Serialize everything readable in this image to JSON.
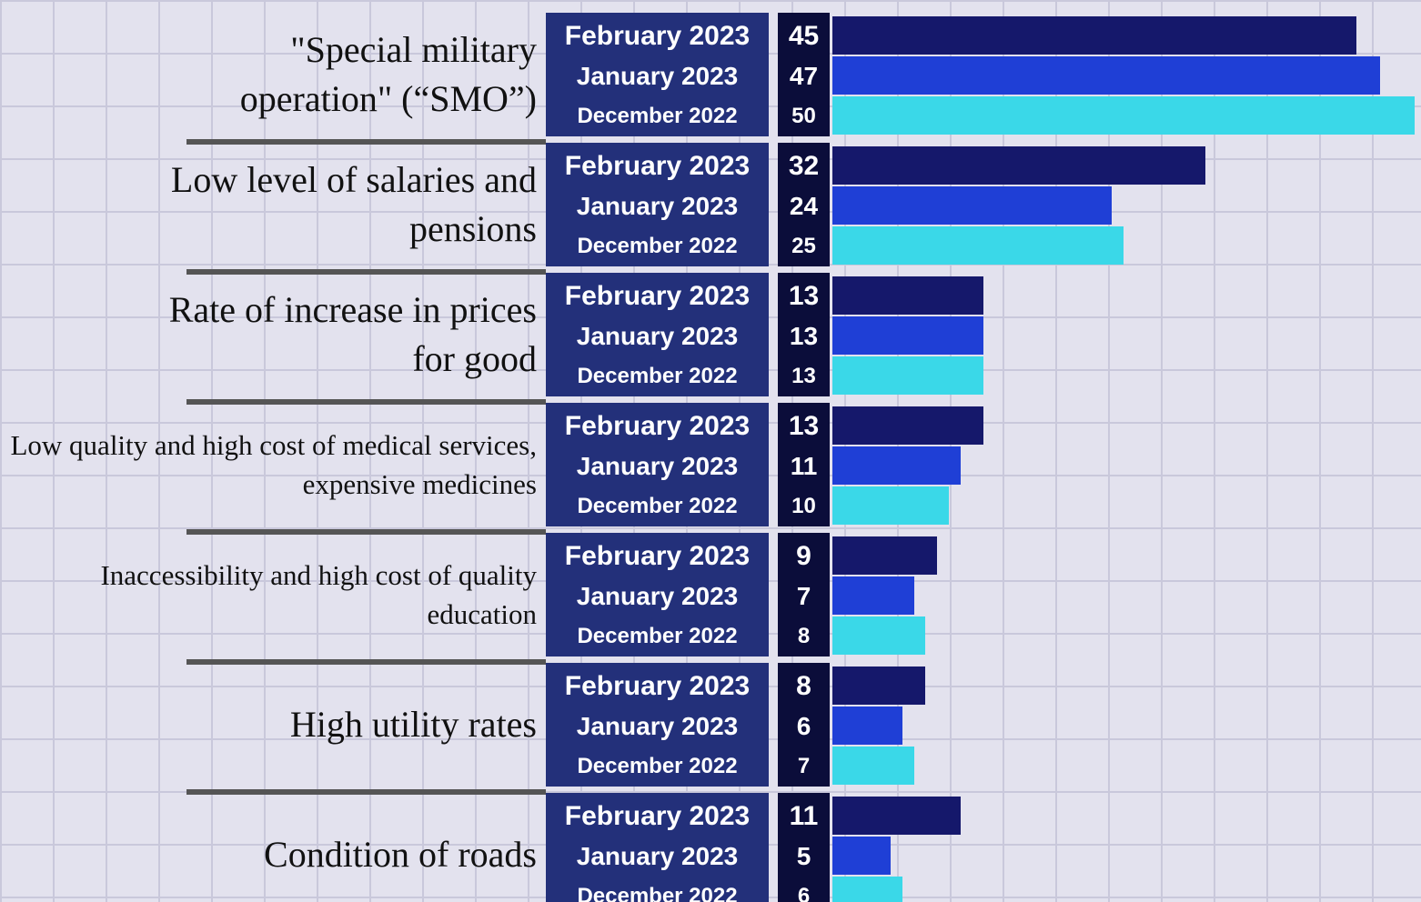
{
  "chart_data": {
    "type": "bar",
    "orientation": "horizontal",
    "categories": [
      "\"Special military operation\" (“SMO”)",
      "Low level of salaries and pensions",
      "Rate of increase in prices for good",
      "Low quality and high cost of medical services, expensive medicines",
      "Inaccessibility and high cost of quality education",
      "High utility rates",
      "Condition of roads"
    ],
    "series": [
      {
        "name": "February 2023",
        "color": "#15186b",
        "values": [
          45,
          32,
          13,
          13,
          9,
          8,
          11
        ]
      },
      {
        "name": "January 2023",
        "color": "#1f3fd6",
        "values": [
          47,
          24,
          13,
          11,
          7,
          6,
          5
        ]
      },
      {
        "name": "December 2022",
        "color": "#3ad8e8",
        "values": [
          50,
          25,
          13,
          10,
          8,
          7,
          6
        ]
      }
    ]
  }
}
